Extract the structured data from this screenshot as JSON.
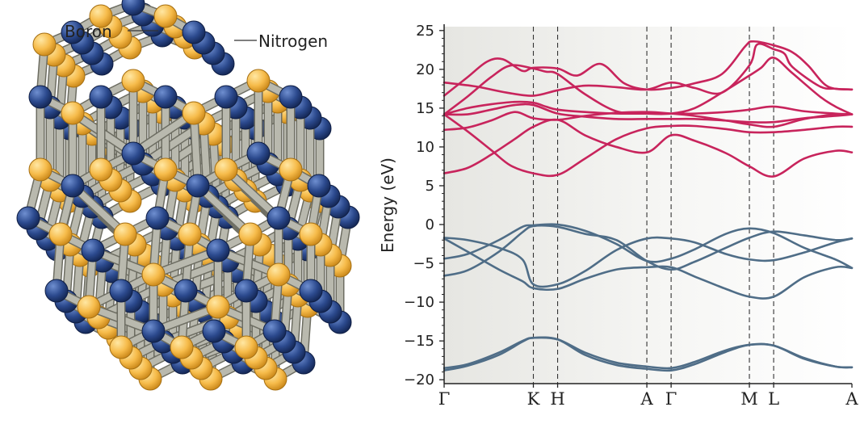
{
  "structure": {
    "label_boron": "Boron",
    "label_nitrogen": "Nitrogen",
    "colors": {
      "boron": "#f6bb4a",
      "nitrogen": "#2c4a8e",
      "bond": "#b9b9ae"
    }
  },
  "chart_data": {
    "type": "line",
    "ylabel": "Energy (eV)",
    "xlabel": "",
    "ylim": [
      -20.5,
      25.5
    ],
    "yticks": [
      -20,
      -15,
      -10,
      -5,
      0,
      5,
      10,
      15,
      20,
      25
    ],
    "kpath": [
      {
        "label": "Γ",
        "x": 0
      },
      {
        "label": "K",
        "x": 1.14
      },
      {
        "label": "H",
        "x": 1.45
      },
      {
        "label": "A",
        "x": 2.59
      },
      {
        "label": "Γ",
        "x": 2.9
      },
      {
        "label": "M",
        "x": 3.9
      },
      {
        "label": "L",
        "x": 4.21
      },
      {
        "label": "A",
        "x": 5.21
      }
    ],
    "vlines_dashed": [
      1.14,
      1.45,
      2.59,
      2.9,
      3.9,
      4.21
    ],
    "series": [
      {
        "group": "conduction",
        "color": "#c8245c",
        "values": [
          [
            0,
            14.2
          ],
          [
            0.3,
            15
          ],
          [
            0.6,
            15.5
          ],
          [
            0.9,
            15.8
          ],
          [
            1.14,
            15.7
          ],
          [
            1.3,
            15.2
          ],
          [
            1.45,
            14.8
          ],
          [
            1.8,
            14.5
          ],
          [
            2.2,
            14.3
          ],
          [
            2.59,
            14.3
          ],
          [
            2.9,
            14.3
          ],
          [
            3.2,
            14.3
          ],
          [
            3.6,
            14.5
          ],
          [
            3.9,
            14.8
          ],
          [
            4.21,
            15.2
          ],
          [
            4.6,
            14.6
          ],
          [
            5.0,
            14.3
          ],
          [
            5.21,
            14.2
          ]
        ]
      },
      {
        "group": "conduction",
        "color": "#c8245c",
        "values": [
          [
            0,
            14.2
          ],
          [
            0.3,
            16.5
          ],
          [
            0.6,
            19
          ],
          [
            0.85,
            20.5
          ],
          [
            1.14,
            20.1
          ],
          [
            1.3,
            19.7
          ],
          [
            1.45,
            19.4
          ],
          [
            1.8,
            16.8
          ],
          [
            2.2,
            14.6
          ],
          [
            2.59,
            14.3
          ],
          [
            2.9,
            14.3
          ],
          [
            3.2,
            15
          ],
          [
            3.55,
            17
          ],
          [
            3.9,
            19.2
          ],
          [
            4.05,
            20.2
          ],
          [
            4.21,
            21.5
          ],
          [
            4.45,
            19.5
          ],
          [
            4.8,
            16.5
          ],
          [
            5.0,
            15.2
          ],
          [
            5.21,
            14.2
          ]
        ]
      },
      {
        "group": "conduction",
        "color": "#c8245c",
        "values": [
          [
            0,
            14.2
          ],
          [
            0.3,
            12
          ],
          [
            0.6,
            9.6
          ],
          [
            0.85,
            7.6
          ],
          [
            1.14,
            6.6
          ],
          [
            1.45,
            6.4
          ],
          [
            1.8,
            8.5
          ],
          [
            2.2,
            11
          ],
          [
            2.59,
            12.4
          ],
          [
            2.9,
            12.7
          ],
          [
            3.2,
            12.7
          ],
          [
            3.6,
            12.3
          ],
          [
            3.9,
            11.9
          ],
          [
            4.21,
            11.9
          ],
          [
            4.6,
            12.2
          ],
          [
            5.0,
            12.6
          ],
          [
            5.21,
            12.6
          ]
        ]
      },
      {
        "group": "conduction",
        "color": "#c8245c",
        "values": [
          [
            0,
            14.2
          ],
          [
            0.3,
            14.2
          ],
          [
            0.6,
            14.8
          ],
          [
            0.9,
            15.4
          ],
          [
            1.14,
            15.4
          ],
          [
            1.45,
            14.3
          ],
          [
            1.8,
            13.9
          ],
          [
            2.2,
            13.6
          ],
          [
            2.59,
            13.6
          ],
          [
            2.9,
            13.6
          ],
          [
            3.2,
            13.6
          ],
          [
            3.6,
            13.4
          ],
          [
            3.9,
            13.2
          ],
          [
            4.21,
            13.2
          ],
          [
            4.6,
            13.7
          ],
          [
            5.0,
            14.0
          ],
          [
            5.21,
            14.2
          ]
        ]
      },
      {
        "group": "conduction",
        "color": "#c8245c",
        "values": [
          [
            0,
            18.3
          ],
          [
            0.4,
            17.8
          ],
          [
            0.8,
            17
          ],
          [
            1.14,
            16.6
          ],
          [
            1.45,
            17.3
          ],
          [
            1.8,
            17.9
          ],
          [
            2.2,
            17.7
          ],
          [
            2.59,
            17.4
          ],
          [
            2.9,
            18.3
          ],
          [
            3.2,
            17.6
          ],
          [
            3.55,
            17
          ],
          [
            3.9,
            20.5
          ],
          [
            4.0,
            23.2
          ],
          [
            4.21,
            22.6
          ],
          [
            4.35,
            22
          ],
          [
            4.45,
            20.3
          ],
          [
            4.8,
            17.8
          ],
          [
            5.0,
            17.5
          ],
          [
            5.21,
            17.4
          ]
        ]
      },
      {
        "group": "conduction",
        "color": "#c8245c",
        "values": [
          [
            0,
            16.6
          ],
          [
            0.3,
            19
          ],
          [
            0.55,
            21
          ],
          [
            0.75,
            21.3
          ],
          [
            1.0,
            19.8
          ],
          [
            1.14,
            20.2
          ],
          [
            1.45,
            20.1
          ],
          [
            1.7,
            19.2
          ],
          [
            2.0,
            20.7
          ],
          [
            2.3,
            18.2
          ],
          [
            2.59,
            17.4
          ],
          [
            2.9,
            17.6
          ],
          [
            3.2,
            18.2
          ],
          [
            3.55,
            19.4
          ],
          [
            3.85,
            23.0
          ],
          [
            3.95,
            23.6
          ],
          [
            4.21,
            23.1
          ],
          [
            4.45,
            22.2
          ],
          [
            4.65,
            20.5
          ],
          [
            4.9,
            17.8
          ],
          [
            5.21,
            17.4
          ]
        ]
      },
      {
        "group": "conduction",
        "color": "#c8245c",
        "values": [
          [
            0,
            12.2
          ],
          [
            0.3,
            12.5
          ],
          [
            0.6,
            13.4
          ],
          [
            0.9,
            14.5
          ],
          [
            1.14,
            13.7
          ],
          [
            1.45,
            13.5
          ],
          [
            1.8,
            14.0
          ],
          [
            2.2,
            14.4
          ],
          [
            2.59,
            14.5
          ],
          [
            2.9,
            14.3
          ],
          [
            3.2,
            14.0
          ],
          [
            3.6,
            13.4
          ],
          [
            3.9,
            12.9
          ],
          [
            4.21,
            12.6
          ],
          [
            4.6,
            13.6
          ],
          [
            5.0,
            14.2
          ],
          [
            5.21,
            14.2
          ]
        ]
      },
      {
        "group": "conduction",
        "color": "#c8245c",
        "values": [
          [
            0,
            6.6
          ],
          [
            0.3,
            7.3
          ],
          [
            0.6,
            9.0
          ],
          [
            0.9,
            11.0
          ],
          [
            1.14,
            12.6
          ],
          [
            1.45,
            13.5
          ],
          [
            1.8,
            11.5
          ],
          [
            2.2,
            10.0
          ],
          [
            2.59,
            9.3
          ],
          [
            2.9,
            11.5
          ],
          [
            3.2,
            10.8
          ],
          [
            3.6,
            9.2
          ],
          [
            3.9,
            7.5
          ],
          [
            4.21,
            6.2
          ],
          [
            4.6,
            8.5
          ],
          [
            5.0,
            9.5
          ],
          [
            5.21,
            9.3
          ]
        ]
      },
      {
        "group": "valence",
        "color": "#4f6d87",
        "values": [
          [
            0,
            -1.7
          ],
          [
            0.3,
            -2.0
          ],
          [
            0.7,
            -3.0
          ],
          [
            1.0,
            -4.5
          ],
          [
            1.14,
            -7.7
          ],
          [
            1.45,
            -7.7
          ],
          [
            1.8,
            -6.0
          ],
          [
            2.2,
            -3.3
          ],
          [
            2.59,
            -1.8
          ],
          [
            2.9,
            -1.8
          ],
          [
            3.2,
            -2.3
          ],
          [
            3.6,
            -3.8
          ],
          [
            3.9,
            -4.5
          ],
          [
            4.21,
            -4.6
          ],
          [
            4.6,
            -3.6
          ],
          [
            5.0,
            -2.3
          ],
          [
            5.21,
            -1.8
          ]
        ]
      },
      {
        "group": "valence",
        "color": "#4f6d87",
        "values": [
          [
            0,
            -1.8
          ],
          [
            0.3,
            -3.5
          ],
          [
            0.7,
            -5.8
          ],
          [
            1.0,
            -7.3
          ],
          [
            1.14,
            -8.2
          ],
          [
            1.45,
            -8.3
          ],
          [
            1.8,
            -7.0
          ],
          [
            2.2,
            -5.8
          ],
          [
            2.59,
            -5.5
          ],
          [
            2.9,
            -5.5
          ],
          [
            3.2,
            -6.7
          ],
          [
            3.6,
            -8.3
          ],
          [
            3.9,
            -9.3
          ],
          [
            4.21,
            -9.3
          ],
          [
            4.6,
            -6.8
          ],
          [
            5.0,
            -5.5
          ],
          [
            5.21,
            -5.6
          ]
        ]
      },
      {
        "group": "valence",
        "color": "#4f6d87",
        "values": [
          [
            0,
            -4.4
          ],
          [
            0.3,
            -3.8
          ],
          [
            0.7,
            -2.0
          ],
          [
            1.0,
            -0.3
          ],
          [
            1.14,
            -0.1
          ],
          [
            1.45,
            0
          ],
          [
            1.8,
            -0.8
          ],
          [
            2.2,
            -2.5
          ],
          [
            2.59,
            -4.7
          ],
          [
            2.9,
            -4.4
          ],
          [
            3.2,
            -3.2
          ],
          [
            3.6,
            -1.2
          ],
          [
            3.9,
            -0.5
          ],
          [
            4.21,
            -1.1
          ],
          [
            4.6,
            -3.0
          ],
          [
            5.0,
            -4.5
          ],
          [
            5.21,
            -5.6
          ]
        ]
      },
      {
        "group": "valence",
        "color": "#4f6d87",
        "values": [
          [
            0,
            -6.6
          ],
          [
            0.3,
            -5.9
          ],
          [
            0.7,
            -3.5
          ],
          [
            1.0,
            -1.0
          ],
          [
            1.14,
            -0.2
          ],
          [
            1.45,
            -0.3
          ],
          [
            1.8,
            -1.2
          ],
          [
            2.2,
            -2.0
          ],
          [
            2.59,
            -4.7
          ],
          [
            2.9,
            -5.8
          ],
          [
            3.2,
            -4.8
          ],
          [
            3.6,
            -3.0
          ],
          [
            3.9,
            -1.7
          ],
          [
            4.21,
            -0.9
          ],
          [
            4.6,
            -1.4
          ],
          [
            5.0,
            -2.0
          ],
          [
            5.21,
            -1.8
          ]
        ]
      },
      {
        "group": "valence",
        "color": "#4f6d87",
        "values": [
          [
            0,
            -18.5
          ],
          [
            0.3,
            -18.0
          ],
          [
            0.7,
            -16.5
          ],
          [
            1.0,
            -15.0
          ],
          [
            1.14,
            -14.6
          ],
          [
            1.45,
            -14.8
          ],
          [
            1.8,
            -16.5
          ],
          [
            2.2,
            -17.8
          ],
          [
            2.59,
            -18.3
          ],
          [
            2.9,
            -18.5
          ],
          [
            3.2,
            -17.7
          ],
          [
            3.6,
            -16.2
          ],
          [
            3.9,
            -15.5
          ],
          [
            4.21,
            -15.6
          ],
          [
            4.6,
            -17.2
          ],
          [
            5.0,
            -18.3
          ],
          [
            5.21,
            -18.4
          ]
        ]
      },
      {
        "group": "valence",
        "color": "#4f6d87",
        "values": [
          [
            0,
            -18.8
          ],
          [
            0.3,
            -18.2
          ],
          [
            0.7,
            -16.8
          ],
          [
            1.0,
            -15.1
          ],
          [
            1.14,
            -14.6
          ],
          [
            1.45,
            -14.8
          ],
          [
            1.8,
            -16.8
          ],
          [
            2.2,
            -18.1
          ],
          [
            2.59,
            -18.6
          ],
          [
            2.9,
            -18.8
          ],
          [
            3.2,
            -18.0
          ],
          [
            3.6,
            -16.4
          ],
          [
            3.9,
            -15.5
          ],
          [
            4.21,
            -15.6
          ],
          [
            4.6,
            -17.3
          ],
          [
            5.0,
            -18.3
          ],
          [
            5.21,
            -18.4
          ]
        ]
      }
    ]
  }
}
